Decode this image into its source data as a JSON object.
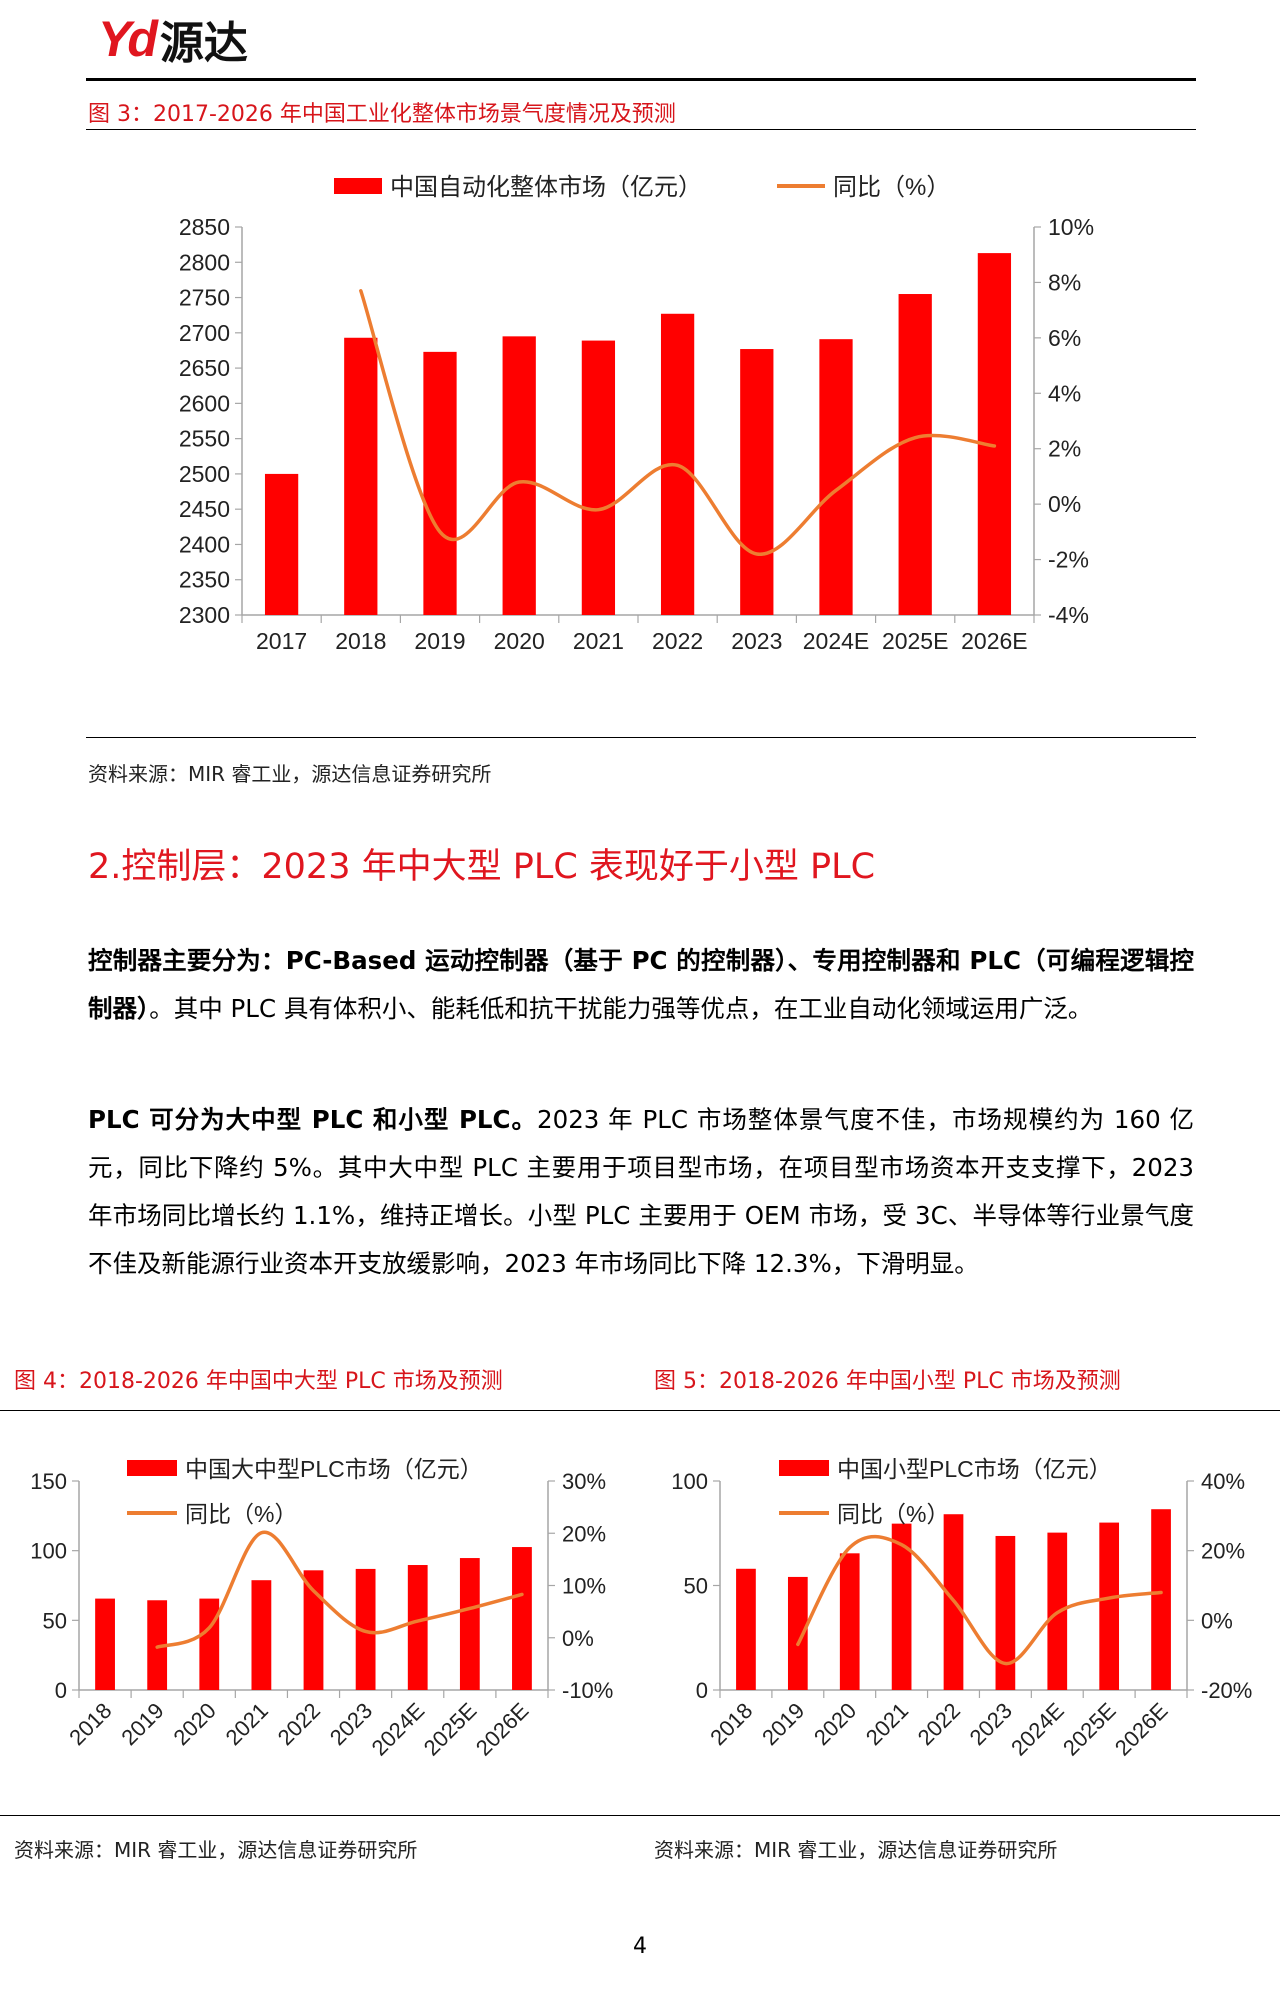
{
  "header": {
    "logo_latin": "Yd",
    "logo_cn": "源达"
  },
  "figure3": {
    "title": "图 3：2017-2026 年中国工业化整体市场景气度情况及预测",
    "source": "资料来源：MIR 睿工业，源达信息证券研究所"
  },
  "section": {
    "heading": "2.控制层：2023 年中大型 PLC 表现好于小型 PLC"
  },
  "paragraphs": [
    {
      "bold": "控制器主要分为：PC-Based 运动控制器（基于  PC 的控制器）、专用控制器和 PLC（可编程逻辑控制器）",
      "text": "。其中 PLC 具有体积小、能耗低和抗干扰能力强等优点，在工业自动化领域运用广泛。"
    },
    {
      "bold": "PLC 可分为大中型 PLC 和小型 PLC。",
      "text": "2023 年 PLC 市场整体景气度不佳，市场规模约为 160 亿元，同比下降约 5%。其中大中型 PLC 主要用于项目型市场，在项目型市场资本开支支撑下，2023 年市场同比增长约 1.1%，维持正增长。小型 PLC 主要用于 OEM 市场，受 3C、半导体等行业景气度不佳及新能源行业资本开支放缓影响，2023 年市场同比下降 12.3%，下滑明显。"
    }
  ],
  "figure4": {
    "title": "图 4：2018-2026 年中国中大型 PLC 市场及预测",
    "source": "资料来源：MIR 睿工业，源达信息证券研究所"
  },
  "figure5": {
    "title": "图 5：2018-2026 年中国小型 PLC 市场及预测",
    "source": "资料来源：MIR 睿工业，源达信息证券研究所"
  },
  "page_number": "4",
  "colors": {
    "bar": "#ff0000",
    "line": "#ed7d31",
    "accent": "#d7151b"
  },
  "chart_data": [
    {
      "type": "bar+line",
      "categories": [
        "2017",
        "2018",
        "2019",
        "2020",
        "2021",
        "2022",
        "2023",
        "2024E",
        "2025E",
        "2026E"
      ],
      "series": [
        {
          "name": "中国自动化整体市场（亿元）",
          "type": "bar",
          "axis": "left",
          "values": [
            2500,
            2693,
            2673,
            2695,
            2689,
            2727,
            2677,
            2691,
            2755,
            2813
          ]
        },
        {
          "name": "同比（%）",
          "type": "line",
          "axis": "right",
          "values": [
            null,
            7.7,
            -1.0,
            0.8,
            -0.2,
            1.4,
            -1.8,
            0.5,
            2.4,
            2.1
          ]
        }
      ],
      "left_axis": {
        "min": 2300,
        "max": 2850,
        "step": 50,
        "ticks": [
          "2300",
          "2350",
          "2400",
          "2450",
          "2500",
          "2550",
          "2600",
          "2650",
          "2700",
          "2750",
          "2800",
          "2850"
        ]
      },
      "right_axis": {
        "min": -4,
        "max": 10,
        "step": 2,
        "ticks": [
          "-4%",
          "-2%",
          "0%",
          "2%",
          "4%",
          "6%",
          "8%",
          "10%"
        ]
      },
      "legend": "top",
      "grid": false
    },
    {
      "type": "bar+line",
      "categories": [
        "2018",
        "2019",
        "2020",
        "2021",
        "2022",
        "2023",
        "2024E",
        "2025E",
        "2026E"
      ],
      "series": [
        {
          "name": "中国大中型PLC市场（亿元）",
          "type": "bar",
          "axis": "left",
          "values": [
            65.6,
            64.4,
            65.6,
            78.8,
            85.9,
            86.9,
            89.7,
            94.7,
            102.6
          ]
        },
        {
          "name": "同比（%）",
          "type": "line",
          "axis": "right",
          "values": [
            null,
            -1.8,
            1.9,
            20.1,
            9.0,
            1.2,
            3.2,
            5.6,
            8.3
          ]
        }
      ],
      "left_axis": {
        "min": 0,
        "max": 150,
        "step": 50,
        "ticks": [
          "0",
          "50",
          "100",
          "150"
        ]
      },
      "right_axis": {
        "min": -10,
        "max": 30,
        "step": 10,
        "ticks": [
          "-10%",
          "0%",
          "10%",
          "20%",
          "30%"
        ]
      },
      "legend": "top",
      "grid": false
    },
    {
      "type": "bar+line",
      "categories": [
        "2018",
        "2019",
        "2020",
        "2021",
        "2022",
        "2023",
        "2024E",
        "2025E",
        "2026E"
      ],
      "series": [
        {
          "name": "中国小型PLC市场（亿元）",
          "type": "bar",
          "axis": "left",
          "values": [
            58.0,
            54.1,
            65.4,
            79.6,
            84.1,
            73.7,
            75.3,
            80.1,
            86.5
          ]
        },
        {
          "name": "同比（%）",
          "type": "line",
          "axis": "right",
          "values": [
            null,
            -6.9,
            20.9,
            21.7,
            5.7,
            -12.4,
            2.2,
            6.4,
            8.0
          ]
        }
      ],
      "left_axis": {
        "min": 0,
        "max": 100,
        "step": 50,
        "ticks": [
          "0",
          "50",
          "100"
        ]
      },
      "right_axis": {
        "min": -20,
        "max": 40,
        "step": 20,
        "ticks": [
          "-20%",
          "0%",
          "20%",
          "40%"
        ]
      },
      "legend": "top",
      "grid": false
    }
  ]
}
